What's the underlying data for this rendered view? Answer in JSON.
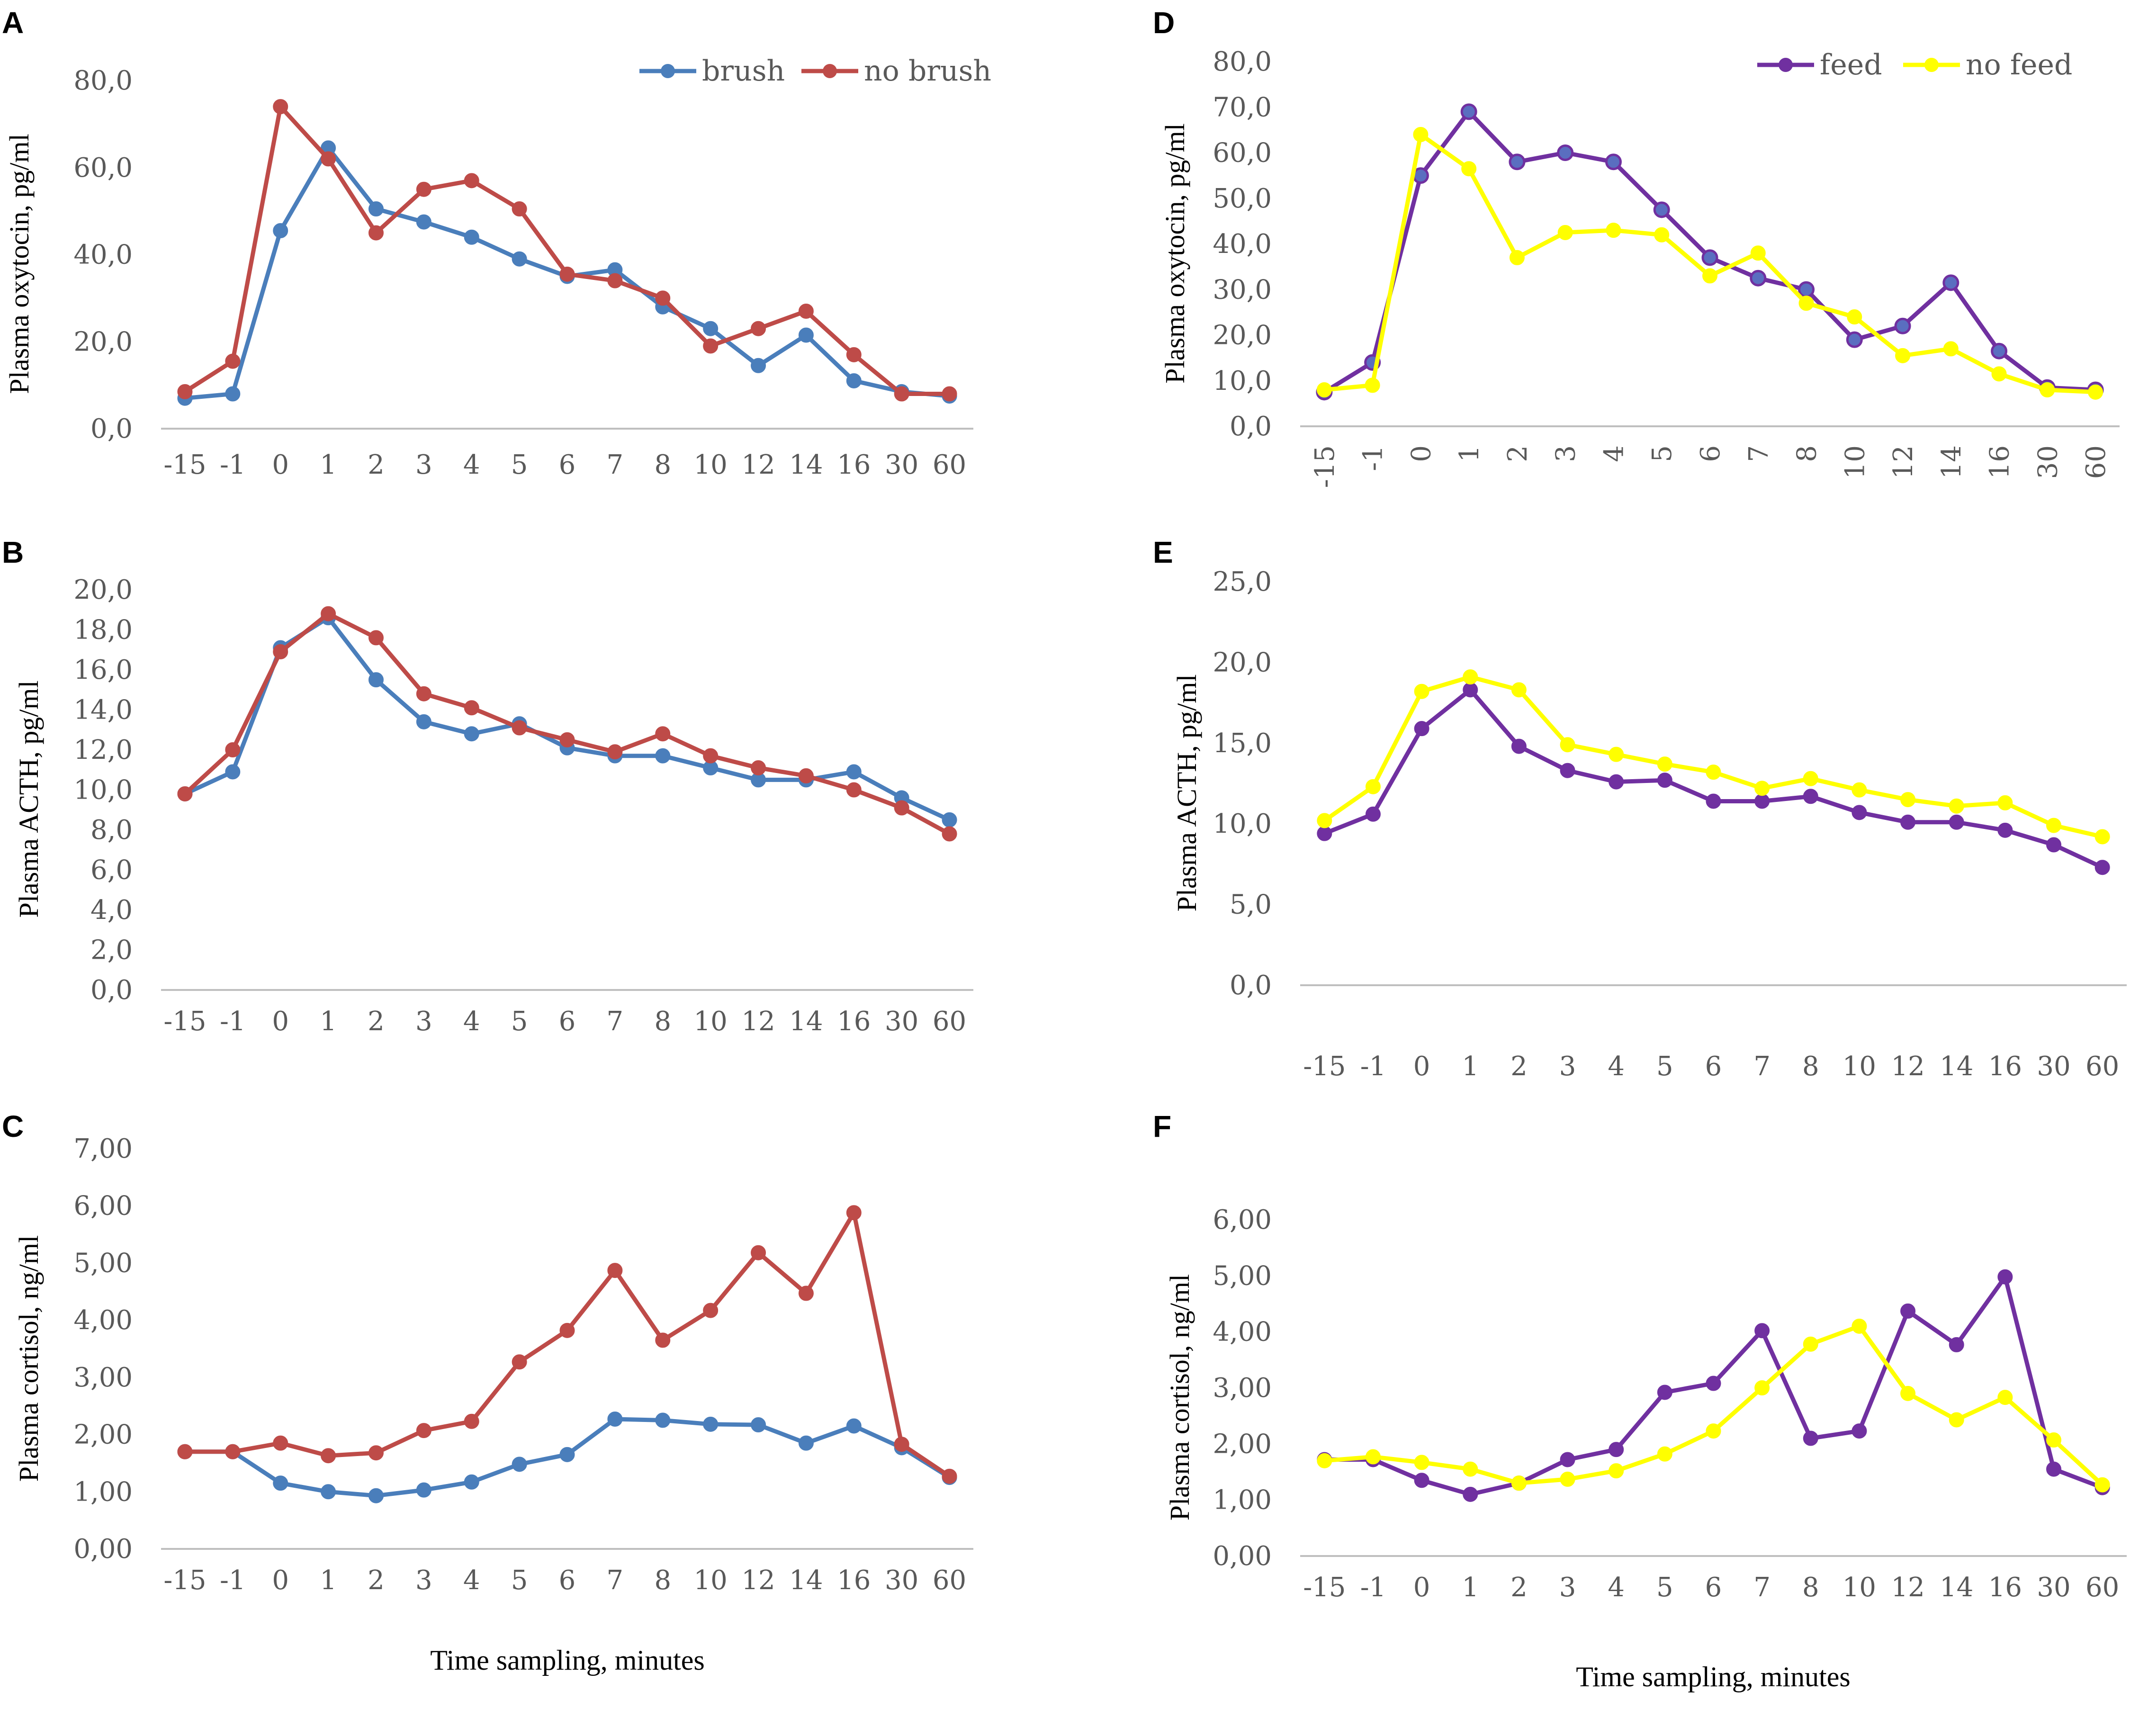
{
  "colors": {
    "brush": "#4a7ebb",
    "no_brush": "#be4b48",
    "feed": "#7030a0",
    "no_feed": "#ffff00",
    "axis": "#bfbfbf",
    "tick_text": "#595959"
  },
  "x_title": "Time sampling, minutes",
  "chart_data": [
    {
      "id": "A",
      "letter": "A",
      "type": "line",
      "ylabel": "Plasma oxytocin, pg/ml",
      "xlabel": "",
      "categories": [
        "-15",
        "-1",
        "0",
        "1",
        "2",
        "3",
        "4",
        "5",
        "6",
        "7",
        "8",
        "10",
        "12",
        "14",
        "16",
        "30",
        "60"
      ],
      "ylim": [
        0,
        80
      ],
      "yticks": [
        "0,0",
        "20,0",
        "40,0",
        "60,0",
        "80,0"
      ],
      "legend": "top-right",
      "series": [
        {
          "name": "brush",
          "color_key": "brush",
          "values": [
            7.0,
            8.0,
            45.5,
            64.5,
            50.5,
            47.5,
            44.0,
            39.0,
            35.0,
            36.5,
            28.0,
            23.0,
            14.5,
            21.5,
            11.0,
            8.5,
            7.5
          ]
        },
        {
          "name": "no brush",
          "color_key": "no_brush",
          "values": [
            8.5,
            15.5,
            74.0,
            62.0,
            45.0,
            55.0,
            57.0,
            50.5,
            35.5,
            34.0,
            30.0,
            19.0,
            23.0,
            27.0,
            17.0,
            8.0,
            8.0
          ]
        }
      ]
    },
    {
      "id": "B",
      "letter": "B",
      "type": "line",
      "ylabel": "Plasma ACTH, pg/ml",
      "xlabel": "",
      "categories": [
        "-15",
        "-1",
        "0",
        "1",
        "2",
        "3",
        "4",
        "5",
        "6",
        "7",
        "8",
        "10",
        "12",
        "14",
        "16",
        "30",
        "60"
      ],
      "ylim": [
        0,
        20
      ],
      "yticks": [
        "0,0",
        "2,0",
        "4,0",
        "6,0",
        "8,0",
        "10,0",
        "12,0",
        "14,0",
        "16,0",
        "18,0",
        "20,0"
      ],
      "series": [
        {
          "name": "brush",
          "color_key": "brush",
          "values": [
            9.8,
            10.9,
            17.1,
            18.6,
            15.5,
            13.4,
            12.8,
            13.3,
            12.1,
            11.7,
            11.7,
            11.1,
            10.5,
            10.5,
            10.9,
            9.6,
            8.5
          ]
        },
        {
          "name": "no brush",
          "color_key": "no_brush",
          "values": [
            9.8,
            12.0,
            16.9,
            18.8,
            17.6,
            14.8,
            14.1,
            13.1,
            12.5,
            11.9,
            12.8,
            11.7,
            11.1,
            10.7,
            10.0,
            9.1,
            7.8
          ]
        }
      ]
    },
    {
      "id": "C",
      "letter": "C",
      "type": "line",
      "ylabel": "Plasma cortisol, ng/ml",
      "xlabel": "Time sampling, minutes",
      "categories": [
        "-15",
        "-1",
        "0",
        "1",
        "2",
        "3",
        "4",
        "5",
        "6",
        "7",
        "8",
        "10",
        "12",
        "14",
        "16",
        "30",
        "60"
      ],
      "ylim": [
        0,
        7
      ],
      "yticks": [
        "0,00",
        "1,00",
        "2,00",
        "3,00",
        "4,00",
        "5,00",
        "6,00",
        "7,00"
      ],
      "series": [
        {
          "name": "brush",
          "color_key": "brush",
          "values": [
            1.7,
            1.7,
            1.15,
            1.0,
            0.93,
            1.03,
            1.17,
            1.48,
            1.65,
            2.27,
            2.25,
            2.18,
            2.17,
            1.85,
            2.15,
            1.77,
            1.25
          ]
        },
        {
          "name": "no brush",
          "color_key": "no_brush",
          "values": [
            1.7,
            1.7,
            1.85,
            1.63,
            1.68,
            2.07,
            2.23,
            3.27,
            3.82,
            4.87,
            3.65,
            4.17,
            5.18,
            4.47,
            5.88,
            1.83,
            1.27
          ]
        }
      ]
    },
    {
      "id": "D",
      "letter": "D",
      "type": "line",
      "ylabel": "Plasma oxytocin, pg/ml",
      "xlabel": "",
      "rotated_ticks": true,
      "categories": [
        "-15",
        "-1",
        "0",
        "1",
        "2",
        "3",
        "4",
        "5",
        "6",
        "7",
        "8",
        "10",
        "12",
        "14",
        "16",
        "30",
        "60"
      ],
      "ylim": [
        0,
        80
      ],
      "yticks": [
        "0,0",
        "10,0",
        "20,0",
        "30,0",
        "40,0",
        "50,0",
        "60,0",
        "70,0",
        "80,0"
      ],
      "legend": "top-right",
      "series": [
        {
          "name": "feed",
          "color_key": "feed",
          "values": [
            7.5,
            14.0,
            55.0,
            69.0,
            58.0,
            60.0,
            58.0,
            47.5,
            37.0,
            32.5,
            30.0,
            19.0,
            22.0,
            31.5,
            16.5,
            8.5,
            8.0
          ]
        },
        {
          "name": "no feed",
          "color_key": "no_feed",
          "values": [
            8.0,
            9.0,
            64.0,
            56.5,
            37.0,
            42.5,
            43.0,
            42.0,
            33.0,
            38.0,
            27.0,
            24.0,
            15.5,
            17.0,
            11.5,
            8.0,
            7.5
          ]
        }
      ]
    },
    {
      "id": "E",
      "letter": "E",
      "type": "line",
      "ylabel": "Plasma ACTH, pg/ml",
      "xlabel": "",
      "categories": [
        "-15",
        "-1",
        "0",
        "1",
        "2",
        "3",
        "4",
        "5",
        "6",
        "7",
        "8",
        "10",
        "12",
        "14",
        "16",
        "30",
        "60"
      ],
      "ylim": [
        0,
        25
      ],
      "yticks": [
        "0,0",
        "5,0",
        "10,0",
        "15,0",
        "20,0",
        "25,0"
      ],
      "series": [
        {
          "name": "feed",
          "color_key": "feed",
          "values": [
            9.4,
            10.6,
            15.9,
            18.3,
            14.8,
            13.3,
            12.6,
            12.7,
            11.4,
            11.4,
            11.7,
            10.7,
            10.1,
            10.1,
            9.6,
            8.7,
            7.3
          ]
        },
        {
          "name": "no feed",
          "color_key": "no_feed",
          "values": [
            10.2,
            12.3,
            18.2,
            19.1,
            18.3,
            14.9,
            14.3,
            13.7,
            13.2,
            12.2,
            12.8,
            12.1,
            11.5,
            11.1,
            11.3,
            9.9,
            9.2
          ]
        }
      ]
    },
    {
      "id": "F",
      "letter": "F",
      "type": "line",
      "ylabel": "Plasma cortisol, ng/ml",
      "xlabel": "Time sampling, minutes",
      "categories": [
        "-15",
        "-1",
        "0",
        "1",
        "2",
        "3",
        "4",
        "5",
        "6",
        "7",
        "8",
        "10",
        "12",
        "14",
        "16",
        "30",
        "60"
      ],
      "ylim": [
        0,
        6
      ],
      "yticks": [
        "0,00",
        "1,00",
        "2,00",
        "3,00",
        "4,00",
        "5,00",
        "6,00"
      ],
      "series": [
        {
          "name": "feed",
          "color_key": "feed",
          "values": [
            1.72,
            1.72,
            1.35,
            1.1,
            1.3,
            1.72,
            1.9,
            2.92,
            3.08,
            4.02,
            2.1,
            2.23,
            4.37,
            3.77,
            4.98,
            1.55,
            1.22
          ]
        },
        {
          "name": "no feed",
          "color_key": "no_feed",
          "values": [
            1.7,
            1.77,
            1.67,
            1.55,
            1.3,
            1.37,
            1.52,
            1.82,
            2.23,
            3.0,
            3.78,
            4.1,
            2.9,
            2.43,
            2.83,
            2.07,
            1.27
          ]
        }
      ]
    }
  ]
}
